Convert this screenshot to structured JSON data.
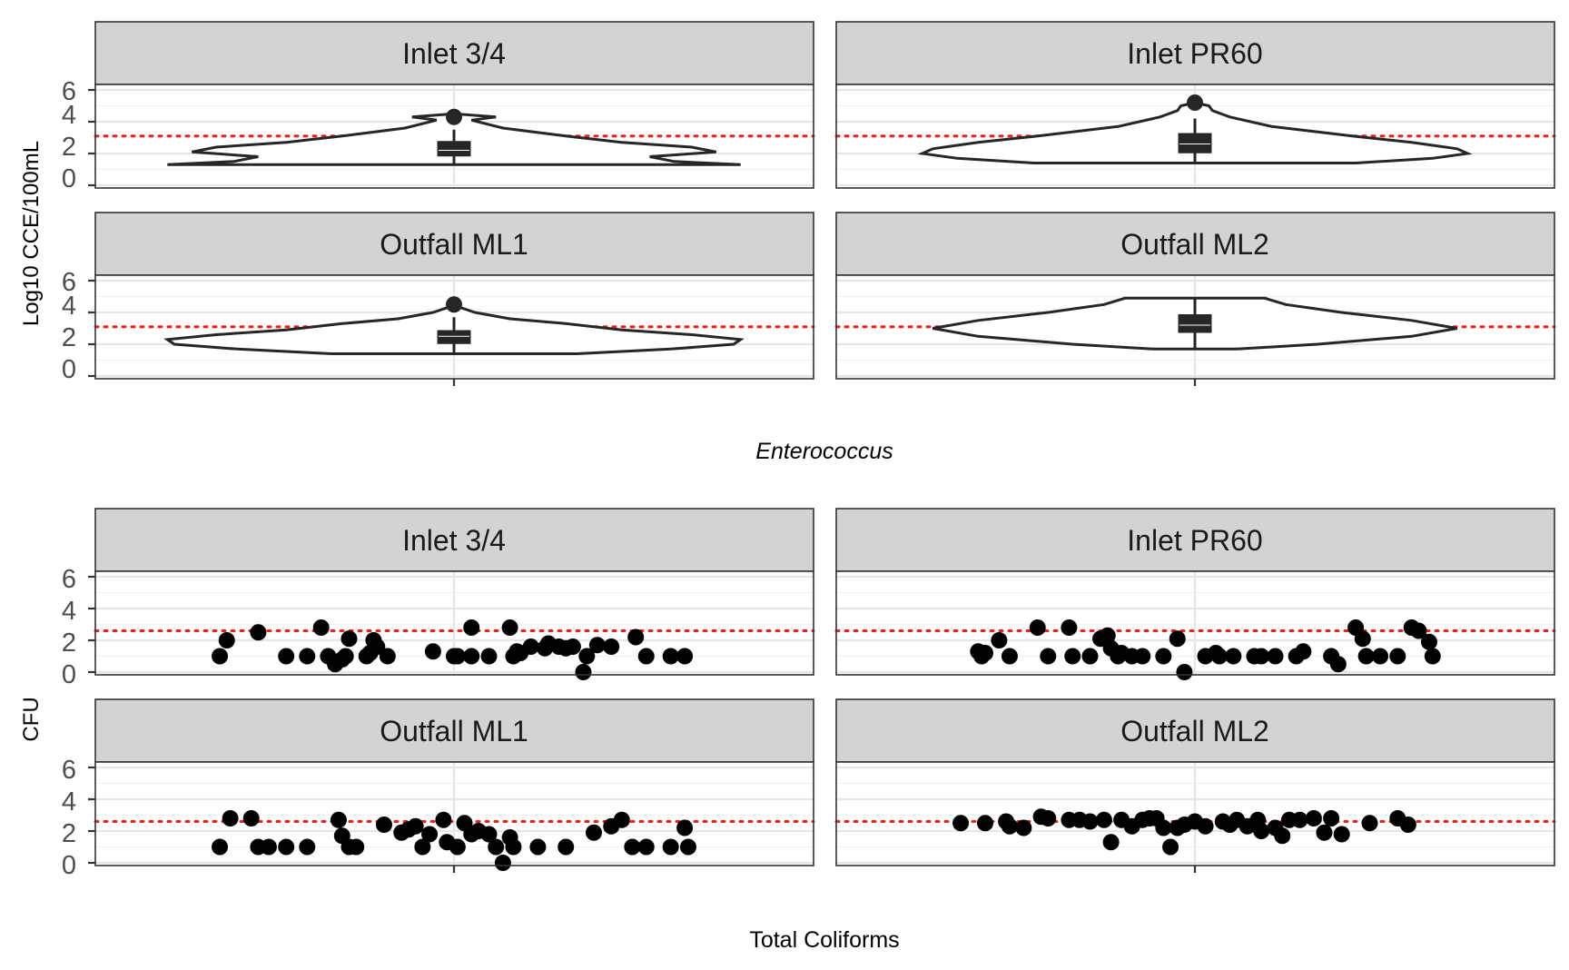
{
  "colors": {
    "point": "#000000",
    "outline": "#262626",
    "reference_line": "#e8231f",
    "strip": "#d3d3d3"
  },
  "chart_data": [
    {
      "type": "violin",
      "xlabel": "Enterococcus",
      "ylabel": "Log10 CCE/100mL",
      "ylim": [
        0,
        6
      ],
      "yticks": [
        "0",
        "2",
        "4",
        "6"
      ],
      "grid": true,
      "reference_line": 3.1,
      "facets": [
        {
          "label": "Inlet 3/4",
          "profile": [
            [
              1.3,
              0.82
            ],
            [
              1.5,
              0.63
            ],
            [
              1.8,
              0.56
            ],
            [
              2.1,
              0.75
            ],
            [
              2.4,
              0.68
            ],
            [
              2.7,
              0.48
            ],
            [
              3.1,
              0.32
            ],
            [
              3.6,
              0.14
            ],
            [
              4.1,
              0.05
            ],
            [
              4.3,
              0.12
            ],
            [
              4.5,
              0.0
            ]
          ],
          "box": {
            "q1": 1.9,
            "median": 2.2,
            "q3": 2.7,
            "whisker_low": 1.3,
            "whisker_high": 3.5
          },
          "outliers": [
            4.3
          ]
        },
        {
          "label": "Inlet PR60",
          "profile": [
            [
              1.4,
              0.46
            ],
            [
              1.7,
              0.68
            ],
            [
              2.0,
              0.78
            ],
            [
              2.3,
              0.75
            ],
            [
              2.7,
              0.62
            ],
            [
              3.1,
              0.45
            ],
            [
              3.7,
              0.22
            ],
            [
              4.3,
              0.1
            ],
            [
              4.7,
              0.05
            ],
            [
              5.0,
              0.04
            ],
            [
              5.2,
              0.0
            ]
          ],
          "box": {
            "q1": 2.1,
            "median": 2.6,
            "q3": 3.2,
            "whisker_low": 1.4,
            "whisker_high": 4.2
          },
          "outliers": [
            5.2
          ]
        },
        {
          "label": "Outfall ML1",
          "profile": [
            [
              1.4,
              0.35
            ],
            [
              1.7,
              0.62
            ],
            [
              2.0,
              0.8
            ],
            [
              2.3,
              0.82
            ],
            [
              2.6,
              0.68
            ],
            [
              2.9,
              0.48
            ],
            [
              3.3,
              0.32
            ],
            [
              3.6,
              0.16
            ],
            [
              4.0,
              0.06
            ],
            [
              4.3,
              0.02
            ],
            [
              4.5,
              0.0
            ]
          ],
          "box": {
            "q1": 2.1,
            "median": 2.5,
            "q3": 2.8,
            "whisker_low": 1.4,
            "whisker_high": 3.7
          },
          "outliers": [
            4.5
          ]
        },
        {
          "label": "Outfall ML2",
          "profile": [
            [
              1.7,
              0.12
            ],
            [
              2.0,
              0.35
            ],
            [
              2.5,
              0.62
            ],
            [
              3.0,
              0.75
            ],
            [
              3.5,
              0.62
            ],
            [
              4.0,
              0.42
            ],
            [
              4.5,
              0.26
            ],
            [
              4.9,
              0.2
            ]
          ],
          "box": {
            "q1": 2.8,
            "median": 3.2,
            "q3": 3.8,
            "whisker_low": 1.7,
            "whisker_high": 4.9
          },
          "outliers": []
        }
      ]
    },
    {
      "type": "scatter",
      "xlabel": "Total Coliforms",
      "ylabel": "CFU",
      "ylim": [
        0,
        6
      ],
      "yticks": [
        "0",
        "2",
        "4",
        "6"
      ],
      "grid": true,
      "reference_line": 2.6,
      "facets": [
        {
          "label": "Inlet 3/4",
          "points": [
            [
              -0.67,
              1.0
            ],
            [
              -0.65,
              2.0
            ],
            [
              -0.56,
              2.5
            ],
            [
              -0.48,
              1.0
            ],
            [
              -0.42,
              1.0
            ],
            [
              -0.38,
              2.8
            ],
            [
              -0.36,
              1.0
            ],
            [
              -0.34,
              0.5
            ],
            [
              -0.32,
              0.8
            ],
            [
              -0.31,
              1.0
            ],
            [
              -0.3,
              2.1
            ],
            [
              -0.25,
              1.0
            ],
            [
              -0.24,
              1.2
            ],
            [
              -0.23,
              2.0
            ],
            [
              -0.22,
              1.6
            ],
            [
              -0.19,
              1.0
            ],
            [
              -0.06,
              1.3
            ],
            [
              0.0,
              1.0
            ],
            [
              0.01,
              1.0
            ],
            [
              0.05,
              1.0
            ],
            [
              0.05,
              2.8
            ],
            [
              0.1,
              1.0
            ],
            [
              0.16,
              2.8
            ],
            [
              0.17,
              1.0
            ],
            [
              0.18,
              1.3
            ],
            [
              0.19,
              1.2
            ],
            [
              0.22,
              1.6
            ],
            [
              0.26,
              1.5
            ],
            [
              0.27,
              1.8
            ],
            [
              0.3,
              1.6
            ],
            [
              0.32,
              1.5
            ],
            [
              0.34,
              1.6
            ],
            [
              0.37,
              0.0
            ],
            [
              0.38,
              1.0
            ],
            [
              0.41,
              1.7
            ],
            [
              0.45,
              1.6
            ],
            [
              0.52,
              2.2
            ],
            [
              0.55,
              1.0
            ],
            [
              0.62,
              1.0
            ],
            [
              0.66,
              1.0
            ]
          ]
        },
        {
          "label": "Inlet PR60",
          "points": [
            [
              -0.62,
              1.3
            ],
            [
              -0.61,
              1.0
            ],
            [
              -0.6,
              1.2
            ],
            [
              -0.56,
              2.0
            ],
            [
              -0.53,
              1.0
            ],
            [
              -0.45,
              2.8
            ],
            [
              -0.42,
              1.0
            ],
            [
              -0.36,
              2.8
            ],
            [
              -0.35,
              1.0
            ],
            [
              -0.3,
              1.0
            ],
            [
              -0.27,
              2.1
            ],
            [
              -0.25,
              2.3
            ],
            [
              -0.24,
              1.5
            ],
            [
              -0.22,
              1.0
            ],
            [
              -0.21,
              1.2
            ],
            [
              -0.18,
              1.0
            ],
            [
              -0.15,
              1.0
            ],
            [
              -0.09,
              1.0
            ],
            [
              -0.05,
              2.1
            ],
            [
              -0.03,
              0.0
            ],
            [
              0.03,
              1.0
            ],
            [
              0.06,
              1.2
            ],
            [
              0.07,
              1.0
            ],
            [
              0.11,
              1.0
            ],
            [
              0.17,
              1.0
            ],
            [
              0.19,
              1.0
            ],
            [
              0.23,
              1.0
            ],
            [
              0.29,
              1.0
            ],
            [
              0.31,
              1.3
            ],
            [
              0.39,
              1.0
            ],
            [
              0.41,
              0.5
            ],
            [
              0.46,
              2.8
            ],
            [
              0.48,
              2.1
            ],
            [
              0.49,
              1.0
            ],
            [
              0.53,
              1.0
            ],
            [
              0.58,
              1.0
            ],
            [
              0.62,
              2.8
            ],
            [
              0.64,
              2.6
            ],
            [
              0.67,
              1.9
            ],
            [
              0.68,
              1.0
            ]
          ]
        },
        {
          "label": "Outfall ML1",
          "points": [
            [
              -0.67,
              1.0
            ],
            [
              -0.64,
              2.8
            ],
            [
              -0.58,
              2.8
            ],
            [
              -0.56,
              1.0
            ],
            [
              -0.53,
              1.0
            ],
            [
              -0.48,
              1.0
            ],
            [
              -0.42,
              1.0
            ],
            [
              -0.33,
              2.7
            ],
            [
              -0.32,
              1.7
            ],
            [
              -0.3,
              1.0
            ],
            [
              -0.28,
              1.0
            ],
            [
              -0.2,
              2.4
            ],
            [
              -0.15,
              1.9
            ],
            [
              -0.13,
              2.1
            ],
            [
              -0.11,
              2.3
            ],
            [
              -0.09,
              1.0
            ],
            [
              -0.07,
              1.8
            ],
            [
              -0.03,
              2.7
            ],
            [
              -0.02,
              1.3
            ],
            [
              0.01,
              1.0
            ],
            [
              0.03,
              2.5
            ],
            [
              0.05,
              1.8
            ],
            [
              0.07,
              2.0
            ],
            [
              0.1,
              1.8
            ],
            [
              0.12,
              1.0
            ],
            [
              0.14,
              0.0
            ],
            [
              0.16,
              1.6
            ],
            [
              0.17,
              1.0
            ],
            [
              0.24,
              1.0
            ],
            [
              0.32,
              1.0
            ],
            [
              0.4,
              1.9
            ],
            [
              0.45,
              2.3
            ],
            [
              0.48,
              2.7
            ],
            [
              0.51,
              1.0
            ],
            [
              0.55,
              1.0
            ],
            [
              0.62,
              1.0
            ],
            [
              0.66,
              2.2
            ],
            [
              0.67,
              1.0
            ]
          ]
        },
        {
          "label": "Outfall ML2",
          "points": [
            [
              -0.67,
              2.5
            ],
            [
              -0.6,
              2.5
            ],
            [
              -0.54,
              2.6
            ],
            [
              -0.53,
              2.3
            ],
            [
              -0.49,
              2.2
            ],
            [
              -0.44,
              2.9
            ],
            [
              -0.42,
              2.8
            ],
            [
              -0.36,
              2.7
            ],
            [
              -0.33,
              2.7
            ],
            [
              -0.3,
              2.6
            ],
            [
              -0.26,
              2.7
            ],
            [
              -0.24,
              1.3
            ],
            [
              -0.21,
              2.7
            ],
            [
              -0.18,
              2.3
            ],
            [
              -0.15,
              2.7
            ],
            [
              -0.13,
              2.8
            ],
            [
              -0.11,
              2.8
            ],
            [
              -0.09,
              2.2
            ],
            [
              -0.07,
              1.0
            ],
            [
              -0.05,
              2.2
            ],
            [
              -0.03,
              2.4
            ],
            [
              0.0,
              2.6
            ],
            [
              0.03,
              2.3
            ],
            [
              0.08,
              2.6
            ],
            [
              0.1,
              2.4
            ],
            [
              0.12,
              2.7
            ],
            [
              0.15,
              2.3
            ],
            [
              0.18,
              2.7
            ],
            [
              0.19,
              2.0
            ],
            [
              0.23,
              2.2
            ],
            [
              0.25,
              1.7
            ],
            [
              0.27,
              2.7
            ],
            [
              0.3,
              2.7
            ],
            [
              0.34,
              2.8
            ],
            [
              0.37,
              1.9
            ],
            [
              0.39,
              2.8
            ],
            [
              0.42,
              1.8
            ],
            [
              0.5,
              2.5
            ],
            [
              0.58,
              2.8
            ],
            [
              0.61,
              2.4
            ]
          ]
        }
      ]
    }
  ]
}
